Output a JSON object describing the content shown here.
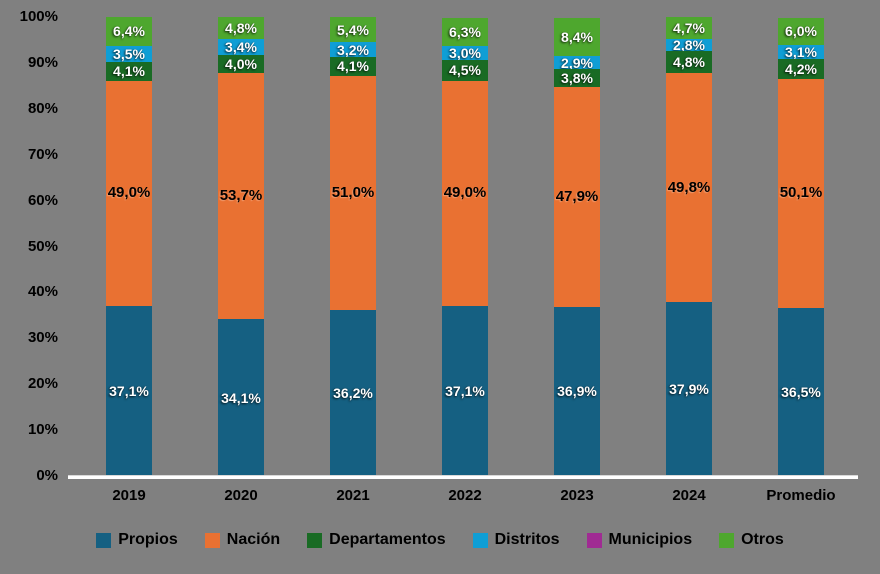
{
  "colors": {
    "background": "#808080",
    "axis_line": "#FFFFFF",
    "tick_text": "#000000",
    "legend_text": "#000000"
  },
  "chart_data": {
    "type": "bar",
    "subtype": "stacked-100-percent-column",
    "title": "",
    "xlabel": "",
    "ylabel": "",
    "grid": false,
    "legend_position": "bottom",
    "ylim": [
      0,
      100
    ],
    "y_ticks": [
      "0%",
      "10%",
      "20%",
      "30%",
      "40%",
      "50%",
      "60%",
      "70%",
      "80%",
      "90%",
      "100%"
    ],
    "categories": [
      "2019",
      "2020",
      "2021",
      "2022",
      "2023",
      "2024",
      "Promedio"
    ],
    "series": [
      {
        "name": "Propios",
        "color": "#156082",
        "label_style": "light",
        "values": [
          37.1,
          34.1,
          36.2,
          37.1,
          36.9,
          37.9,
          36.5
        ],
        "labels": [
          "37,1%",
          "34,1%",
          "36,2%",
          "37,1%",
          "36,9%",
          "37,9%",
          "36,5%"
        ]
      },
      {
        "name": "Nación",
        "color": "#E97132",
        "label_style": "dark",
        "values": [
          49.0,
          53.7,
          51.0,
          49.0,
          47.9,
          49.8,
          50.1
        ],
        "labels": [
          "49,0%",
          "53,7%",
          "51,0%",
          "49,0%",
          "47,9%",
          "49,8%",
          "50,1%"
        ]
      },
      {
        "name": "Departamentos",
        "color": "#196B24",
        "label_style": "light",
        "values": [
          4.1,
          4.0,
          4.1,
          4.5,
          3.8,
          4.8,
          4.2
        ],
        "labels": [
          "4,1%",
          "4,0%",
          "4,1%",
          "4,5%",
          "3,8%",
          "4,8%",
          "4,2%"
        ]
      },
      {
        "name": "Distritos",
        "color": "#0F9ED5",
        "label_style": "light",
        "values": [
          3.5,
          3.4,
          3.2,
          3.0,
          2.9,
          2.8,
          3.1
        ],
        "labels": [
          "3,5%",
          "3,4%",
          "3,2%",
          "3,0%",
          "2,9%",
          "2,8%",
          "3,1%"
        ]
      },
      {
        "name": "Municipios",
        "color": "#A02B93",
        "label_style": "light",
        "values": [
          0,
          0,
          0,
          0,
          0,
          0,
          0
        ],
        "labels": [
          "",
          "",
          "",
          "",
          "",
          "",
          ""
        ]
      },
      {
        "name": "Otros",
        "color": "#4EA72E",
        "label_style": "light",
        "values": [
          6.4,
          4.8,
          5.4,
          6.3,
          8.4,
          4.7,
          6.0
        ],
        "labels": [
          "6,4%",
          "4,8%",
          "5,4%",
          "6,3%",
          "8,4%",
          "4,7%",
          "6,0%"
        ]
      }
    ]
  }
}
